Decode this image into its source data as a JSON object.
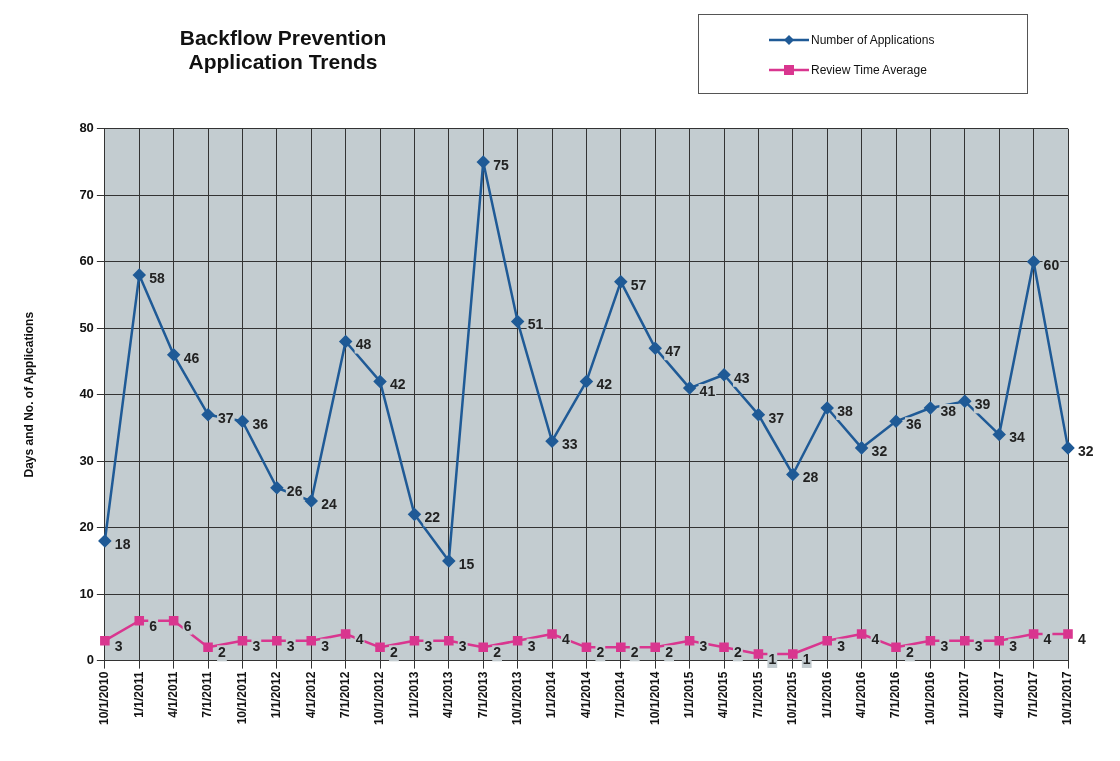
{
  "chart_data": {
    "type": "line",
    "title": "Backflow Prevention\nApplication Trends",
    "ylabel": "Days and No. of Applications",
    "categories": [
      "10/1/2010",
      "1/1/2011",
      "4/1/2011",
      "7/1/2011",
      "10/1/2011",
      "1/1/2012",
      "4/1/2012",
      "7/1/2012",
      "10/1/2012",
      "1/1/2013",
      "4/1/2013",
      "7/1/2013",
      "10/1/2013",
      "1/1/2014",
      "4/1/2014",
      "7/1/2014",
      "10/1/2014",
      "1/1/2015",
      "4/1/2015",
      "7/1/2015",
      "10/1/2015",
      "1/1/2016",
      "4/1/2016",
      "7/1/2016",
      "10/1/2016",
      "1/1/2017",
      "4/1/2017",
      "7/1/2017",
      "10/1/2017"
    ],
    "series": [
      {
        "name": "Number of Applications",
        "color": "#1f5a96",
        "marker": "diamond",
        "values": [
          18,
          58,
          46,
          37,
          36,
          26,
          24,
          48,
          42,
          22,
          15,
          75,
          51,
          33,
          42,
          57,
          47,
          41,
          43,
          37,
          28,
          38,
          32,
          36,
          38,
          39,
          34,
          60,
          32
        ]
      },
      {
        "name": "Review Time Average",
        "color": "#d9368f",
        "marker": "square",
        "values": [
          3,
          6,
          6,
          2,
          3,
          3,
          3,
          4,
          2,
          3,
          3,
          2,
          3,
          4,
          2,
          2,
          2,
          3,
          2,
          1,
          1,
          3,
          4,
          2,
          3,
          3,
          3,
          4,
          4
        ]
      }
    ],
    "ylim": [
      0,
      80
    ],
    "yticks": [
      0,
      10,
      20,
      30,
      40,
      50,
      60,
      70,
      80
    ],
    "grid": true,
    "legend": "top right",
    "data_labels": true
  }
}
